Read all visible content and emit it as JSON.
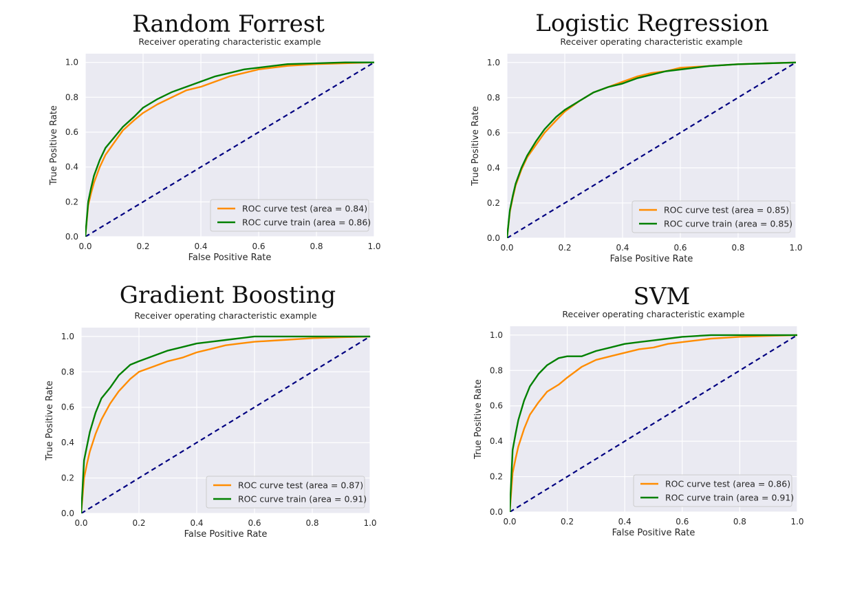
{
  "colors": {
    "test": "#ff8c00",
    "train": "#008000",
    "diagonal": "#000080",
    "plot_bg": "#eaeaf2",
    "grid": "#ffffff"
  },
  "chart_data": [
    {
      "type": "line",
      "heading": "Random Forrest",
      "title": "Receiver operating characteristic example",
      "xlabel": "False Positive Rate",
      "ylabel": "True Positive Rate",
      "xlim": [
        0,
        1
      ],
      "ylim": [
        0,
        1.05
      ],
      "xticks": [
        "0.0",
        "0.2",
        "0.4",
        "0.6",
        "0.8",
        "1.0"
      ],
      "yticks": [
        "0.0",
        "0.2",
        "0.4",
        "0.6",
        "0.8",
        "1.0"
      ],
      "grid": true,
      "legend_position": "lower-right",
      "diagonal": {
        "x": [
          0,
          1
        ],
        "y": [
          0,
          1
        ],
        "style": "dashed"
      },
      "series": [
        {
          "name": "ROC curve test (area = 0.84)",
          "color": "#ff8c00",
          "x": [
            0,
            0.01,
            0.02,
            0.03,
            0.05,
            0.07,
            0.1,
            0.13,
            0.17,
            0.2,
            0.25,
            0.3,
            0.35,
            0.4,
            0.45,
            0.5,
            0.55,
            0.6,
            0.7,
            0.8,
            0.9,
            1.0
          ],
          "y": [
            0,
            0.18,
            0.25,
            0.31,
            0.4,
            0.47,
            0.54,
            0.61,
            0.67,
            0.71,
            0.76,
            0.8,
            0.84,
            0.86,
            0.89,
            0.92,
            0.94,
            0.96,
            0.98,
            0.99,
            0.995,
            1.0
          ]
        },
        {
          "name": "ROC curve train (area = 0.86)",
          "color": "#008000",
          "x": [
            0,
            0.01,
            0.02,
            0.03,
            0.05,
            0.07,
            0.1,
            0.13,
            0.17,
            0.2,
            0.25,
            0.3,
            0.35,
            0.4,
            0.45,
            0.5,
            0.55,
            0.6,
            0.7,
            0.8,
            0.9,
            1.0
          ],
          "y": [
            0,
            0.2,
            0.28,
            0.35,
            0.44,
            0.51,
            0.57,
            0.63,
            0.69,
            0.74,
            0.79,
            0.83,
            0.86,
            0.89,
            0.92,
            0.94,
            0.96,
            0.97,
            0.99,
            0.995,
            1.0,
            1.0
          ]
        }
      ]
    },
    {
      "type": "line",
      "heading": "Logistic Regression",
      "title": "Receiver operating characteristic example",
      "xlabel": "False Positive Rate",
      "ylabel": "True Positive Rate",
      "xlim": [
        0,
        1
      ],
      "ylim": [
        0,
        1.05
      ],
      "xticks": [
        "0.0",
        "0.2",
        "0.4",
        "0.6",
        "0.8",
        "1.0"
      ],
      "yticks": [
        "0.0",
        "0.2",
        "0.4",
        "0.6",
        "0.8",
        "1.0"
      ],
      "grid": true,
      "legend_position": "lower-right",
      "diagonal": {
        "x": [
          0,
          1
        ],
        "y": [
          0,
          1
        ],
        "style": "dashed"
      },
      "series": [
        {
          "name": "ROC curve test (area = 0.85)",
          "color": "#ff8c00",
          "x": [
            0,
            0.01,
            0.02,
            0.03,
            0.05,
            0.07,
            0.1,
            0.13,
            0.17,
            0.2,
            0.25,
            0.3,
            0.35,
            0.4,
            0.45,
            0.5,
            0.55,
            0.6,
            0.7,
            0.8,
            0.9,
            1.0
          ],
          "y": [
            0,
            0.15,
            0.23,
            0.3,
            0.39,
            0.46,
            0.53,
            0.6,
            0.67,
            0.72,
            0.78,
            0.83,
            0.86,
            0.89,
            0.92,
            0.94,
            0.95,
            0.97,
            0.98,
            0.99,
            0.995,
            1.0
          ]
        },
        {
          "name": "ROC curve train (area = 0.85)",
          "color": "#008000",
          "x": [
            0,
            0.01,
            0.02,
            0.03,
            0.05,
            0.07,
            0.1,
            0.13,
            0.17,
            0.2,
            0.25,
            0.3,
            0.35,
            0.4,
            0.45,
            0.5,
            0.55,
            0.6,
            0.7,
            0.8,
            0.9,
            1.0
          ],
          "y": [
            0,
            0.16,
            0.24,
            0.31,
            0.4,
            0.47,
            0.55,
            0.62,
            0.69,
            0.73,
            0.78,
            0.83,
            0.86,
            0.88,
            0.91,
            0.93,
            0.95,
            0.96,
            0.98,
            0.99,
            0.995,
            1.0
          ]
        }
      ]
    },
    {
      "type": "line",
      "heading": "Gradient Boosting",
      "title": "Receiver operating characteristic example",
      "xlabel": "False Positive Rate",
      "ylabel": "True Positive Rate",
      "xlim": [
        0,
        1
      ],
      "ylim": [
        0,
        1.05
      ],
      "xticks": [
        "0.0",
        "0.2",
        "0.4",
        "0.6",
        "0.8",
        "1.0"
      ],
      "yticks": [
        "0.0",
        "0.2",
        "0.4",
        "0.6",
        "0.8",
        "1.0"
      ],
      "grid": true,
      "legend_position": "lower-right",
      "diagonal": {
        "x": [
          0,
          1
        ],
        "y": [
          0,
          1
        ],
        "style": "dashed"
      },
      "series": [
        {
          "name": "ROC curve test (area = 0.87)",
          "color": "#ff8c00",
          "x": [
            0,
            0.01,
            0.02,
            0.03,
            0.05,
            0.07,
            0.1,
            0.13,
            0.17,
            0.2,
            0.25,
            0.3,
            0.35,
            0.4,
            0.45,
            0.5,
            0.55,
            0.6,
            0.7,
            0.8,
            0.9,
            1.0
          ],
          "y": [
            0,
            0.2,
            0.28,
            0.35,
            0.45,
            0.53,
            0.62,
            0.69,
            0.76,
            0.8,
            0.83,
            0.86,
            0.88,
            0.91,
            0.93,
            0.95,
            0.96,
            0.97,
            0.98,
            0.99,
            0.995,
            1.0
          ]
        },
        {
          "name": "ROC curve train (area = 0.91)",
          "color": "#008000",
          "x": [
            0,
            0.01,
            0.02,
            0.03,
            0.05,
            0.07,
            0.1,
            0.13,
            0.17,
            0.2,
            0.25,
            0.3,
            0.35,
            0.4,
            0.45,
            0.5,
            0.55,
            0.6,
            0.7,
            0.8,
            0.9,
            1.0
          ],
          "y": [
            0,
            0.3,
            0.38,
            0.46,
            0.57,
            0.65,
            0.71,
            0.78,
            0.84,
            0.86,
            0.89,
            0.92,
            0.94,
            0.96,
            0.97,
            0.98,
            0.99,
            1.0,
            1.0,
            1.0,
            1.0,
            1.0
          ]
        }
      ]
    },
    {
      "type": "line",
      "heading": "SVM",
      "title": "Receiver operating characteristic example",
      "xlabel": "False Positive Rate",
      "ylabel": "True Positive Rate",
      "xlim": [
        0,
        1
      ],
      "ylim": [
        0,
        1.05
      ],
      "xticks": [
        "0.0",
        "0.2",
        "0.4",
        "0.6",
        "0.8",
        "1.0"
      ],
      "yticks": [
        "0.0",
        "0.2",
        "0.4",
        "0.6",
        "0.8",
        "1.0"
      ],
      "grid": true,
      "legend_position": "lower-right",
      "diagonal": {
        "x": [
          0,
          1
        ],
        "y": [
          0,
          1
        ],
        "style": "dashed"
      },
      "series": [
        {
          "name": "ROC curve test (area = 0.86)",
          "color": "#ff8c00",
          "x": [
            0,
            0.01,
            0.02,
            0.03,
            0.05,
            0.07,
            0.1,
            0.13,
            0.17,
            0.2,
            0.25,
            0.3,
            0.35,
            0.4,
            0.45,
            0.5,
            0.55,
            0.6,
            0.7,
            0.8,
            0.9,
            1.0
          ],
          "y": [
            0,
            0.22,
            0.3,
            0.37,
            0.47,
            0.55,
            0.62,
            0.68,
            0.72,
            0.76,
            0.82,
            0.86,
            0.88,
            0.9,
            0.92,
            0.93,
            0.95,
            0.96,
            0.98,
            0.99,
            0.995,
            1.0
          ]
        },
        {
          "name": "ROC curve train (area = 0.91)",
          "color": "#008000",
          "x": [
            0,
            0.01,
            0.02,
            0.03,
            0.05,
            0.07,
            0.1,
            0.13,
            0.17,
            0.2,
            0.25,
            0.3,
            0.35,
            0.4,
            0.45,
            0.5,
            0.55,
            0.6,
            0.7,
            0.8,
            0.9,
            1.0
          ],
          "y": [
            0,
            0.35,
            0.44,
            0.52,
            0.63,
            0.71,
            0.78,
            0.83,
            0.87,
            0.88,
            0.88,
            0.91,
            0.93,
            0.95,
            0.96,
            0.97,
            0.98,
            0.99,
            1.0,
            1.0,
            1.0,
            1.0
          ]
        }
      ]
    }
  ]
}
